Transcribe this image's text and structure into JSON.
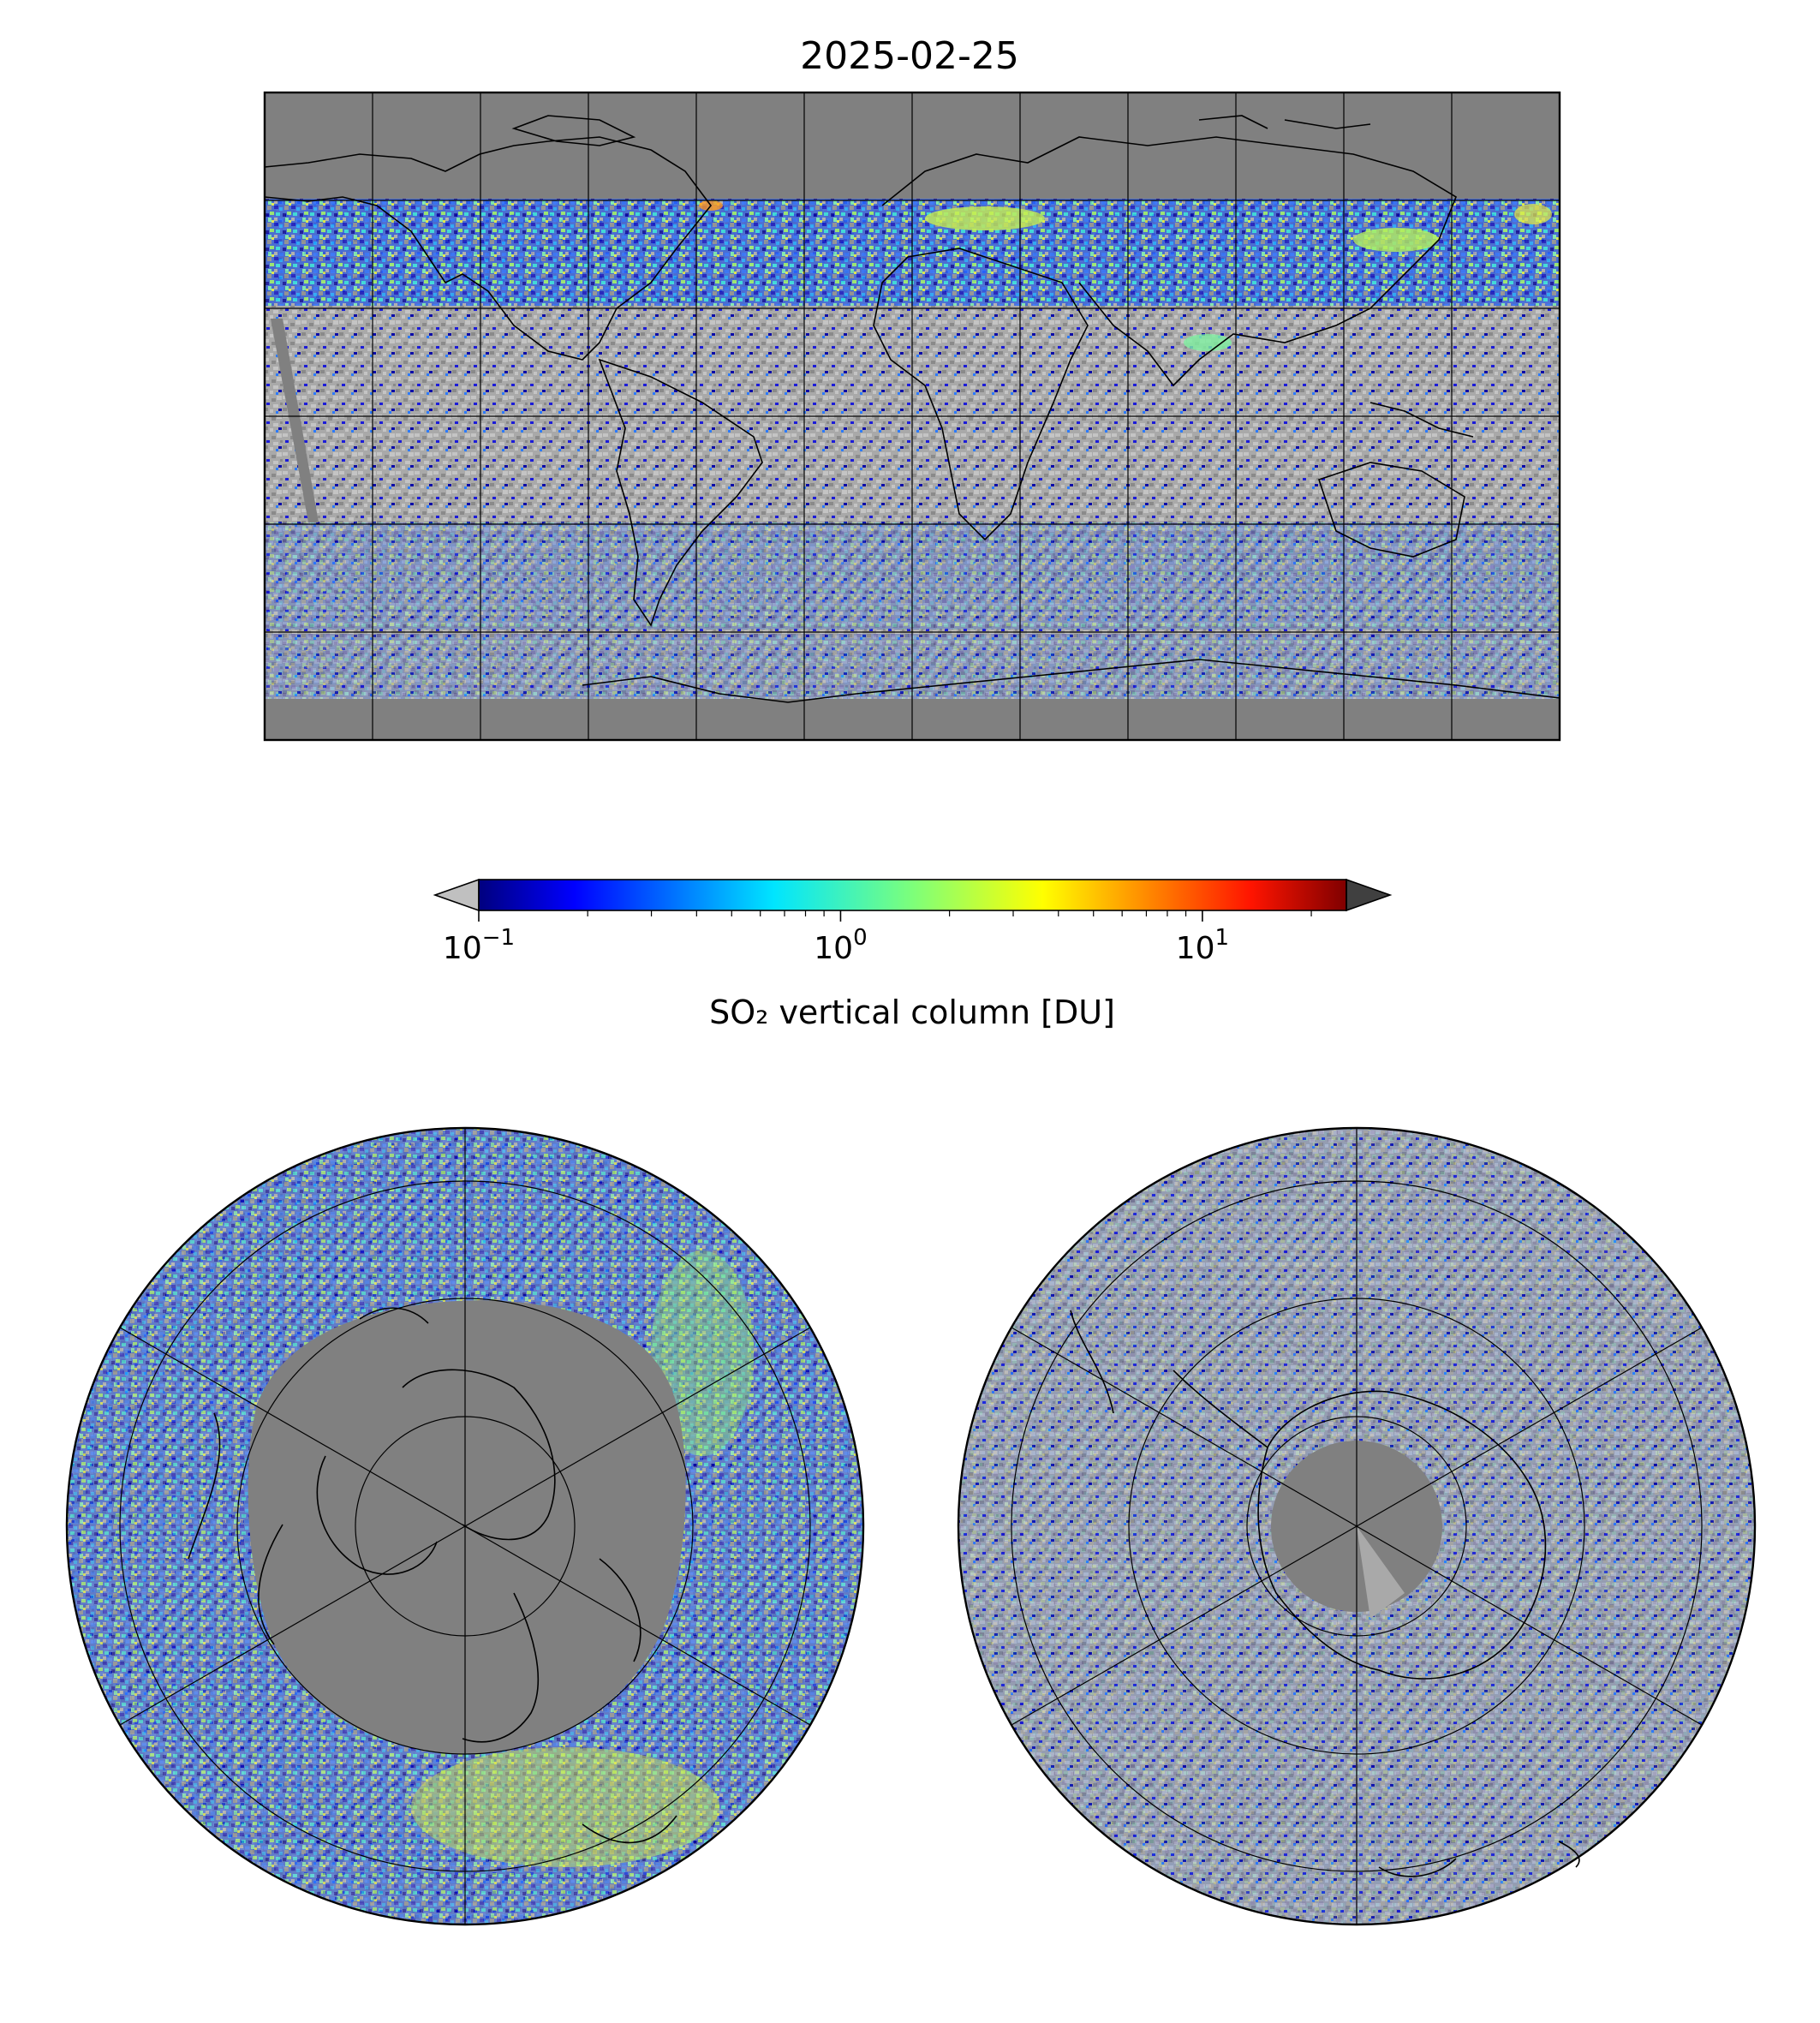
{
  "title": "2025-02-25",
  "colorbar": {
    "label": "SO₂ vertical column [DU]",
    "scale": "log",
    "range": [
      0.1,
      25
    ],
    "extend": "both",
    "under_color": "#c0c0c0",
    "over_color": "#404040",
    "colormap": "jet",
    "ticks": [
      {
        "value": 0.1,
        "base": "10",
        "exp": "−1"
      },
      {
        "value": 1,
        "base": "10",
        "exp": "0"
      },
      {
        "value": 10,
        "base": "10",
        "exp": "1"
      }
    ]
  },
  "colors": {
    "no_data": "#808080",
    "below_range": "#c0c0c0",
    "coastline": "#000000"
  },
  "maps": [
    {
      "id": "global",
      "projection": "PlateCarree",
      "extent": [
        -180,
        180,
        -90,
        90
      ],
      "gridlines": {
        "lon_step": 30,
        "lat_step": 30
      }
    },
    {
      "id": "north-polar",
      "projection": "NorthPolarStereo",
      "gridlines": {
        "lon_step": 60,
        "lat_rings": [
          80,
          60,
          40,
          20
        ]
      }
    },
    {
      "id": "south-polar",
      "projection": "SouthPolarStereo",
      "gridlines": {
        "lon_step": 60,
        "lat_rings": [
          -80,
          -60,
          -40,
          -20
        ]
      }
    }
  ]
}
